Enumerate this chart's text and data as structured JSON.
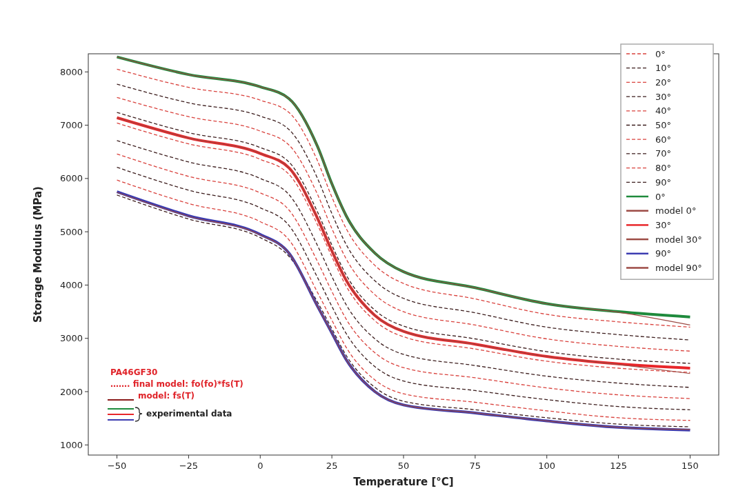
{
  "chart_data": {
    "type": "line",
    "xlabel": "Temperature [°C]",
    "ylabel": "Storage Modulus (MPa)",
    "x": [
      -50,
      -25,
      0,
      10,
      20,
      25,
      30,
      40,
      50,
      75,
      100,
      125,
      150
    ],
    "xlim": [
      -60,
      160
    ],
    "xticks": [
      {
        "value": -50,
        "label": "−50"
      },
      {
        "value": -25,
        "label": "−25"
      },
      0,
      25,
      50,
      75,
      100,
      125,
      150
    ],
    "ylim": [
      810,
      8340
    ],
    "yticks": [
      1000,
      2000,
      3000,
      4000,
      5000,
      6000,
      7000,
      8000
    ],
    "grid": false,
    "legend": "top right",
    "marker": "none",
    "annotations": [
      "PA46GF30",
      "……. final model: fo(fo)*fs(T)",
      "model: fs(T)",
      "experimental data"
    ],
    "series": [
      {
        "name": "0°",
        "color": "#d9413c",
        "line_style": "dashed",
        "values": [
          8050,
          7710,
          7470,
          7240,
          6330,
          5650,
          5060,
          4370,
          4030,
          3740,
          3450,
          3310,
          3210
        ]
      },
      {
        "name": "10°",
        "color": "#3b1c1c",
        "line_style": "dashed",
        "values": [
          7770,
          7420,
          7170,
          6920,
          6000,
          5340,
          4760,
          4080,
          3750,
          3480,
          3210,
          3070,
          2970
        ]
      },
      {
        "name": "20°",
        "color": "#d9413c",
        "line_style": "dashed",
        "values": [
          7520,
          7160,
          6890,
          6630,
          5700,
          5060,
          4490,
          3820,
          3500,
          3250,
          2990,
          2850,
          2760
        ]
      },
      {
        "name": "30°",
        "color": "#3b1c1c",
        "line_style": "dashed",
        "values": [
          7240,
          6860,
          6580,
          6310,
          5370,
          4750,
          4190,
          3530,
          3230,
          2990,
          2750,
          2610,
          2530
        ]
      },
      {
        "name": "40°",
        "color": "#d9413c",
        "line_style": "dashed",
        "values": [
          7040,
          6650,
          6360,
          6080,
          5130,
          4530,
          3980,
          3330,
          3030,
          2800,
          2570,
          2440,
          2360
        ]
      },
      {
        "name": "50°",
        "color": "#3b1c1c",
        "line_style": "dashed",
        "values": [
          6710,
          6310,
          6000,
          5700,
          4740,
          4160,
          3630,
          2990,
          2700,
          2490,
          2290,
          2160,
          2080
        ]
      },
      {
        "name": "60°",
        "color": "#d9413c",
        "line_style": "dashed",
        "values": [
          6460,
          6040,
          5730,
          5410,
          4440,
          3880,
          3360,
          2730,
          2450,
          2260,
          2070,
          1940,
          1870
        ]
      },
      {
        "name": "70°",
        "color": "#3b1c1c",
        "line_style": "dashed",
        "values": [
          6210,
          5780,
          5450,
          5120,
          4140,
          3600,
          3090,
          2470,
          2200,
          2020,
          1850,
          1720,
          1660
        ]
      },
      {
        "name": "80°",
        "color": "#d9413c",
        "line_style": "dashed",
        "values": [
          5970,
          5530,
          5190,
          4850,
          3860,
          3340,
          2830,
          2220,
          1960,
          1800,
          1640,
          1510,
          1460
        ]
      },
      {
        "name": "90°",
        "color": "#3b1c1c",
        "line_style": "dashed",
        "values": [
          5690,
          5240,
          4890,
          4540,
          3680,
          3180,
          2680,
          2080,
          1820,
          1660,
          1510,
          1390,
          1340
        ]
      },
      {
        "name": "0°",
        "color": "#1e8a3c",
        "line_style": "solid",
        "values": [
          8280,
          7950,
          7720,
          7500,
          6600,
          5900,
          5300,
          4600,
          4250,
          3950,
          3650,
          3500,
          3400
        ]
      },
      {
        "name": "model 0°",
        "color": "#9c4a44",
        "line_style": "solid",
        "values": [
          8280,
          7950,
          7720,
          7500,
          6600,
          5900,
          5300,
          4600,
          4250,
          3950,
          3650,
          3490,
          3250
        ]
      },
      {
        "name": "30°",
        "color": "#e8262a",
        "line_style": "solid",
        "values": [
          7140,
          6760,
          6470,
          6200,
          5250,
          4640,
          4090,
          3430,
          3130,
          2890,
          2660,
          2520,
          2440
        ]
      },
      {
        "name": "model 30°",
        "color": "#9c4a44",
        "line_style": "solid",
        "values": [
          7140,
          6760,
          6470,
          6200,
          5250,
          4640,
          4090,
          3430,
          3130,
          2890,
          2660,
          2510,
          2340
        ]
      },
      {
        "name": "90°",
        "color": "#3b3bb0",
        "line_style": "solid",
        "values": [
          5750,
          5300,
          4950,
          4600,
          3600,
          3100,
          2600,
          2000,
          1750,
          1600,
          1450,
          1330,
          1280
        ]
      },
      {
        "name": "model 90°",
        "color": "#9c4a44",
        "line_style": "solid",
        "values": [
          5740,
          5290,
          4940,
          4600,
          3600,
          3100,
          2600,
          2000,
          1750,
          1600,
          1450,
          1330,
          1290
        ]
      }
    ]
  }
}
